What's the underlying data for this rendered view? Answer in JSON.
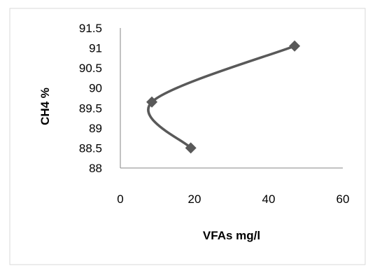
{
  "chart_data": {
    "type": "scatter",
    "xlabel": "VFAs mg/l",
    "ylabel": "CH4 %",
    "xlim": [
      0,
      60
    ],
    "ylim": [
      88,
      91.5
    ],
    "x_ticks": [
      "0",
      "20",
      "40",
      "60"
    ],
    "y_ticks": [
      "88",
      "88.5",
      "89",
      "89.5",
      "90",
      "90.5",
      "91",
      "91.5"
    ],
    "grid": false,
    "smoothed_line": true,
    "marker": "diamond",
    "series": [
      {
        "color": "#595959",
        "points": [
          {
            "x": 19,
            "y": 88.5
          },
          {
            "x": 8.5,
            "y": 89.65
          },
          {
            "x": 47,
            "y": 91.05
          }
        ]
      }
    ]
  }
}
